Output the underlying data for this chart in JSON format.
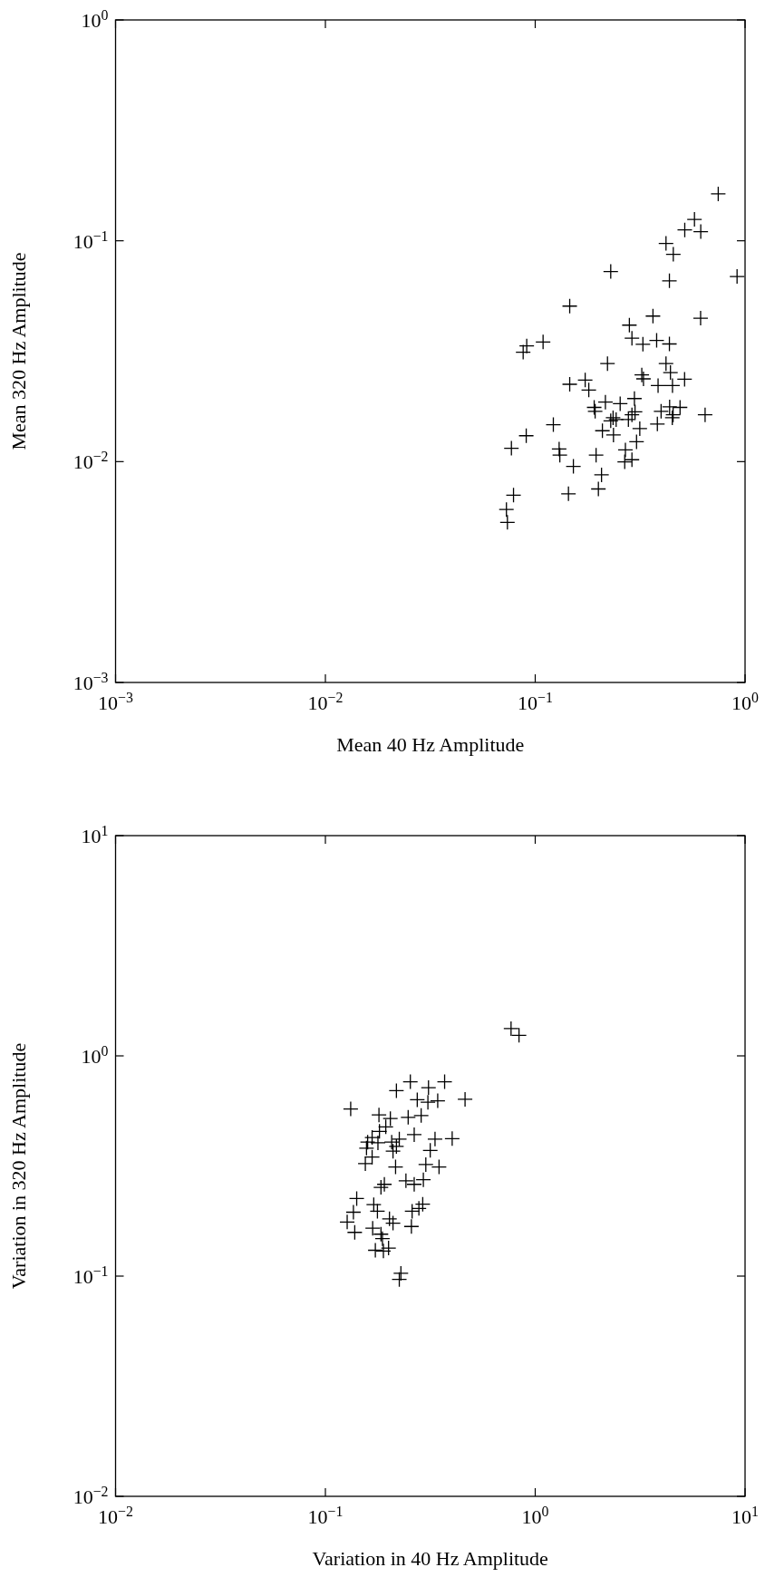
{
  "chart_data": [
    {
      "type": "scatter",
      "xlabel": "Mean 40 Hz Amplitude",
      "ylabel": "Mean 320 Hz Amplitude",
      "log": "xy",
      "marker": "cross",
      "grid": false,
      "color": "#000000",
      "xlim": [
        0.001,
        1
      ],
      "ylim": [
        0.001,
        1
      ],
      "xticks": [
        {
          "value": 0.001,
          "label": "10$^{−3}$"
        },
        {
          "value": 0.01,
          "label": "10$^{−2}$"
        },
        {
          "value": 0.1,
          "label": "10$^{−1}$"
        },
        {
          "value": 1,
          "label": "10$^{0}$"
        }
      ],
      "yticks": [
        {
          "value": 0.001,
          "label": "10$^{−3}$"
        },
        {
          "value": 0.01,
          "label": "10$^{−2}$"
        },
        {
          "value": 0.1,
          "label": "10$^{−1}$"
        },
        {
          "value": 1,
          "label": "10$^{0}$"
        }
      ],
      "x": [
        0.745,
        0.574,
        0.516,
        0.615,
        0.42,
        0.455,
        0.229,
        0.436,
        0.916,
        0.146,
        0.614,
        0.364,
        0.281,
        0.289,
        0.326,
        0.379,
        0.436,
        0.109,
        0.0911,
        0.0876,
        0.221,
        0.42,
        0.441,
        0.515,
        0.322,
        0.328,
        0.385,
        0.451,
        0.173,
        0.146,
        0.18,
        0.216,
        0.254,
        0.297,
        0.191,
        0.193,
        0.235,
        0.243,
        0.229,
        0.289,
        0.299,
        0.278,
        0.398,
        0.437,
        0.49,
        0.454,
        0.45,
        0.645,
        0.382,
        0.315,
        0.209,
        0.236,
        0.304,
        0.269,
        0.289,
        0.267,
        0.122,
        0.0906,
        0.077,
        0.13,
        0.131,
        0.152,
        0.195,
        0.207,
        0.2,
        0.144,
        0.0788,
        0.0729,
        0.0737
      ],
      "values": [
        0.163,
        0.125,
        0.112,
        0.11,
        0.0973,
        0.0869,
        0.0726,
        0.0659,
        0.0689,
        0.0506,
        0.0446,
        0.0456,
        0.0415,
        0.0362,
        0.034,
        0.0354,
        0.0341,
        0.0348,
        0.0334,
        0.0313,
        0.0278,
        0.0278,
        0.0253,
        0.0236,
        0.0247,
        0.0237,
        0.0221,
        0.0221,
        0.0234,
        0.0224,
        0.0211,
        0.0186,
        0.0183,
        0.0193,
        0.0176,
        0.0169,
        0.0158,
        0.0155,
        0.0153,
        0.0163,
        0.0168,
        0.0155,
        0.0169,
        0.0177,
        0.0176,
        0.0163,
        0.0158,
        0.0163,
        0.0148,
        0.0141,
        0.0138,
        0.0132,
        0.0123,
        0.0113,
        0.0102,
        0.00998,
        0.0147,
        0.0131,
        0.0115,
        0.0114,
        0.0107,
        0.00952,
        0.0107,
        0.00871,
        0.00752,
        0.00715,
        0.00705,
        0.00607,
        0.00531
      ]
    },
    {
      "type": "scatter",
      "xlabel": "Variation in 40 Hz Amplitude",
      "ylabel": "Variation in 320 Hz Amplitude",
      "log": "xy",
      "marker": "cross",
      "grid": false,
      "color": "#000000",
      "xlim": [
        0.01,
        10
      ],
      "ylim": [
        0.01,
        10
      ],
      "xticks": [
        {
          "value": 0.01,
          "label": "10$^{−2}$"
        },
        {
          "value": 0.1,
          "label": "10$^{−1}$"
        },
        {
          "value": 1,
          "label": "10$^{0}$"
        },
        {
          "value": 10,
          "label": "10$^{1}$"
        }
      ],
      "yticks": [
        {
          "value": 0.01,
          "label": "10$^{−2}$"
        },
        {
          "value": 0.1,
          "label": "10$^{−1}$"
        },
        {
          "value": 1,
          "label": "10$^{0}$"
        },
        {
          "value": 10,
          "label": "10$^{1}$"
        }
      ],
      "x": [
        0.767,
        0.837,
        0.132,
        0.18,
        0.204,
        0.218,
        0.254,
        0.31,
        0.37,
        0.274,
        0.308,
        0.343,
        0.463,
        0.248,
        0.286,
        0.194,
        0.181,
        0.167,
        0.159,
        0.157,
        0.178,
        0.207,
        0.225,
        0.218,
        0.21,
        0.265,
        0.333,
        0.402,
        0.316,
        0.167,
        0.155,
        0.216,
        0.301,
        0.348,
        0.184,
        0.191,
        0.242,
        0.265,
        0.293,
        0.141,
        0.17,
        0.136,
        0.177,
        0.127,
        0.138,
        0.168,
        0.202,
        0.21,
        0.259,
        0.291,
        0.279,
        0.257,
        0.187,
        0.184,
        0.173,
        0.189,
        0.2,
        0.229,
        0.225
      ],
      "values": [
        1.33,
        1.24,
        0.574,
        0.539,
        0.519,
        0.695,
        0.763,
        0.717,
        0.763,
        0.632,
        0.616,
        0.625,
        0.635,
        0.526,
        0.536,
        0.476,
        0.454,
        0.426,
        0.406,
        0.381,
        0.403,
        0.406,
        0.419,
        0.388,
        0.369,
        0.439,
        0.419,
        0.421,
        0.372,
        0.347,
        0.324,
        0.313,
        0.321,
        0.313,
        0.253,
        0.261,
        0.271,
        0.261,
        0.274,
        0.225,
        0.211,
        0.195,
        0.197,
        0.176,
        0.158,
        0.165,
        0.182,
        0.174,
        0.197,
        0.212,
        0.203,
        0.168,
        0.148,
        0.155,
        0.131,
        0.13,
        0.134,
        0.103,
        0.0966
      ]
    }
  ]
}
